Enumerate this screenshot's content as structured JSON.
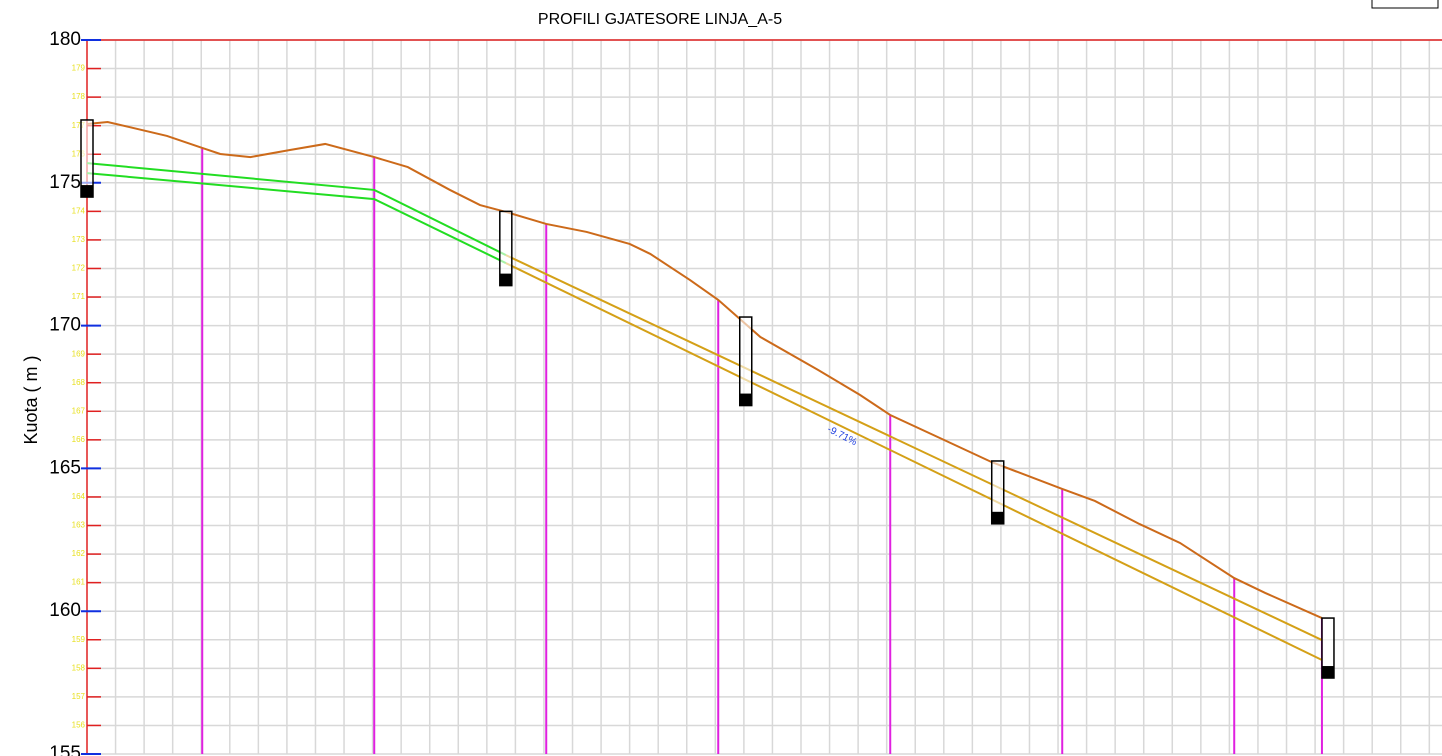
{
  "chart_data": {
    "type": "line",
    "title": "PROFILI GJATESORE LINJA_A-5",
    "y_label": "Kuota ( m )",
    "annotation": "-9.71%",
    "xlim": [
      0,
      157.56
    ],
    "ylim": [
      155,
      180
    ],
    "yticks": [
      155,
      160,
      165,
      170,
      175,
      180
    ],
    "yminor_ticks": [
      156,
      157,
      158,
      159,
      161,
      162,
      163,
      164,
      166,
      167,
      168,
      169,
      171,
      172,
      173,
      174,
      176,
      177,
      178,
      179
    ],
    "grid": true,
    "series": [
      {
        "color": "#cc6a1a",
        "x": [
          0,
          2.4,
          9.3,
          13.4,
          15.5,
          19.0,
          23.6,
          27.7,
          33.4,
          37.3,
          42.2,
          45.7,
          48.7,
          53.4,
          58.1,
          63.1,
          65.5,
          70.1,
          73.4,
          78.3,
          85.0,
          89.9,
          93.4,
          99.2,
          105.2,
          113.4,
          117.2,
          122.4,
          127.1,
          133.4,
          137.0,
          143.6
        ],
        "values": [
          177.06,
          177.13,
          176.64,
          176.22,
          176.01,
          175.9,
          176.15,
          176.36,
          175.9,
          175.55,
          174.75,
          174.22,
          173.98,
          173.56,
          173.28,
          172.86,
          172.51,
          171.6,
          170.9,
          169.6,
          168.45,
          167.57,
          166.87,
          166.06,
          165.22,
          164.28,
          163.86,
          163.05,
          162.39,
          161.16,
          160.64,
          159.76
        ]
      },
      {
        "color": "#22dd22",
        "x": [
          0,
          33.4,
          48.7
        ],
        "values": [
          175.69,
          174.75,
          172.47
        ]
      },
      {
        "color": "#22dd22",
        "x": [
          0,
          33.4,
          48.7
        ],
        "values": [
          175.34,
          174.43,
          172.19
        ]
      },
      {
        "color": "#d4a017",
        "x": [
          48.7,
          143.6
        ],
        "values": [
          172.47,
          158.99
        ]
      },
      {
        "color": "#d4a017",
        "x": [
          48.7,
          143.6
        ],
        "values": [
          172.19,
          158.29
        ]
      }
    ],
    "stations": {
      "color": "#e020e0",
      "x": [
        13.4,
        33.4,
        53.4,
        73.4,
        93.4,
        113.4,
        133.4,
        143.6
      ],
      "values": [
        176.22,
        175.9,
        173.56,
        170.9,
        166.87,
        164.28,
        161.16,
        159.76
      ]
    },
    "manholes": {
      "x": [
        0,
        48.7,
        76.6,
        105.9,
        144.3
      ],
      "top": [
        177.2,
        174.0,
        170.3,
        165.26,
        159.76
      ],
      "bottom": [
        174.5,
        171.4,
        167.2,
        163.06,
        157.66
      ]
    }
  }
}
